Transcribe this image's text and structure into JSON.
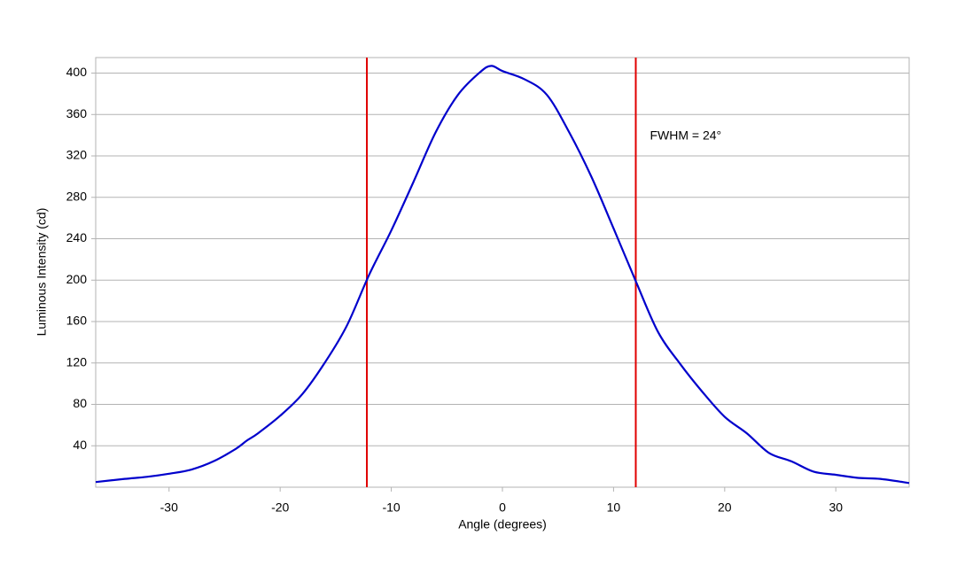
{
  "chart_data": {
    "type": "line",
    "x_label": "Angle (degrees)",
    "y_label": "Luminous Intensity (cd)",
    "annotation": "FWHM = 24°",
    "x": [
      -36.6,
      -34,
      -32,
      -30,
      -28,
      -26,
      -24,
      -23,
      -22,
      -20,
      -18,
      -16,
      -14,
      -12,
      -10,
      -8,
      -6,
      -4,
      -2,
      -1,
      0,
      2,
      4,
      6,
      8,
      10,
      12,
      14,
      16,
      18,
      20,
      22,
      24,
      26,
      28,
      30,
      32,
      34,
      36.6
    ],
    "series": [
      {
        "color": "#0000cc",
        "values": [
          5,
          8,
          10,
          13,
          17,
          25,
          37,
          45,
          52,
          69,
          90,
          120,
          156,
          205,
          248,
          295,
          343,
          379,
          401,
          407,
          402,
          394,
          379,
          343,
          300,
          250,
          199,
          150,
          119,
          92,
          68,
          52,
          33,
          25,
          15,
          12,
          9,
          8,
          4
        ]
      }
    ],
    "vlines": [
      -12.2,
      12.0
    ],
    "vline_color": "#e00000",
    "xlim": [
      -36.6,
      36.6
    ],
    "ylim": [
      0,
      415
    ],
    "xticks": [
      -30,
      -20,
      -10,
      0,
      10,
      20,
      30
    ],
    "yticks": [
      40,
      80,
      120,
      160,
      200,
      240,
      280,
      320,
      360,
      400
    ],
    "grid": true
  }
}
